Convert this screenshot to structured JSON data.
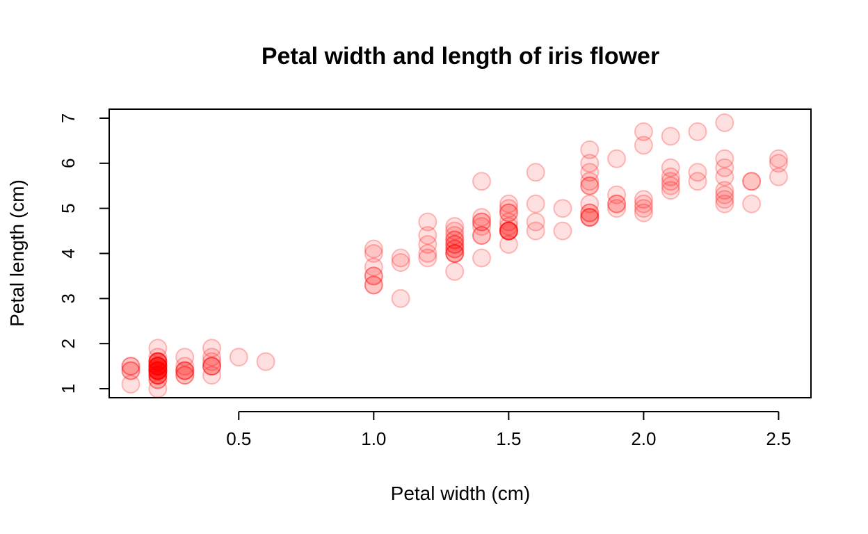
{
  "chart_data": {
    "type": "scatter",
    "title": "Petal width and length of iris flower",
    "xlabel": "Petal width (cm)",
    "ylabel": "Petal length (cm)",
    "xlim": [
      0.02,
      2.62
    ],
    "ylim": [
      0.8,
      7.2
    ],
    "xticks": [
      0.5,
      1.0,
      1.5,
      2.0,
      2.5
    ],
    "xtick_labels": [
      "0.5",
      "1.0",
      "1.5",
      "2.0",
      "2.5"
    ],
    "yticks": [
      1,
      2,
      3,
      4,
      5,
      6,
      7
    ],
    "ytick_labels": [
      "1",
      "2",
      "3",
      "4",
      "5",
      "6",
      "7"
    ],
    "grid": false,
    "legend": null,
    "point_color": "#ff0000",
    "point_fill_opacity": 0.12,
    "point_stroke_opacity": 0.25,
    "series": [
      {
        "points": [
          [
            0.2,
            1.4
          ],
          [
            0.2,
            1.4
          ],
          [
            0.2,
            1.3
          ],
          [
            0.2,
            1.5
          ],
          [
            0.2,
            1.4
          ],
          [
            0.4,
            1.7
          ],
          [
            0.3,
            1.4
          ],
          [
            0.2,
            1.5
          ],
          [
            0.2,
            1.4
          ],
          [
            0.1,
            1.5
          ],
          [
            0.2,
            1.5
          ],
          [
            0.2,
            1.6
          ],
          [
            0.1,
            1.4
          ],
          [
            0.1,
            1.1
          ],
          [
            0.2,
            1.2
          ],
          [
            0.4,
            1.5
          ],
          [
            0.4,
            1.3
          ],
          [
            0.3,
            1.4
          ],
          [
            0.3,
            1.7
          ],
          [
            0.3,
            1.5
          ],
          [
            0.2,
            1.7
          ],
          [
            0.4,
            1.5
          ],
          [
            0.2,
            1.0
          ],
          [
            0.5,
            1.7
          ],
          [
            0.2,
            1.9
          ],
          [
            0.2,
            1.6
          ],
          [
            0.4,
            1.6
          ],
          [
            0.2,
            1.5
          ],
          [
            0.2,
            1.4
          ],
          [
            0.2,
            1.6
          ],
          [
            0.2,
            1.6
          ],
          [
            0.4,
            1.5
          ],
          [
            0.1,
            1.5
          ],
          [
            0.2,
            1.4
          ],
          [
            0.2,
            1.5
          ],
          [
            0.2,
            1.2
          ],
          [
            0.2,
            1.3
          ],
          [
            0.1,
            1.4
          ],
          [
            0.2,
            1.3
          ],
          [
            0.2,
            1.5
          ],
          [
            0.3,
            1.3
          ],
          [
            0.3,
            1.3
          ],
          [
            0.2,
            1.3
          ],
          [
            0.6,
            1.6
          ],
          [
            0.4,
            1.9
          ],
          [
            0.3,
            1.4
          ],
          [
            0.2,
            1.6
          ],
          [
            0.2,
            1.4
          ],
          [
            0.2,
            1.5
          ],
          [
            0.2,
            1.4
          ],
          [
            1.4,
            4.7
          ],
          [
            1.5,
            4.5
          ],
          [
            1.5,
            4.9
          ],
          [
            1.3,
            4.0
          ],
          [
            1.5,
            4.6
          ],
          [
            1.3,
            4.5
          ],
          [
            1.6,
            4.7
          ],
          [
            1.0,
            3.3
          ],
          [
            1.3,
            4.6
          ],
          [
            1.4,
            3.9
          ],
          [
            1.0,
            3.5
          ],
          [
            1.5,
            4.2
          ],
          [
            1.0,
            4.0
          ],
          [
            1.4,
            4.7
          ],
          [
            1.3,
            3.6
          ],
          [
            1.4,
            4.4
          ],
          [
            1.5,
            4.5
          ],
          [
            1.0,
            4.1
          ],
          [
            1.5,
            4.5
          ],
          [
            1.1,
            3.9
          ],
          [
            1.8,
            4.8
          ],
          [
            1.3,
            4.0
          ],
          [
            1.5,
            4.9
          ],
          [
            1.2,
            4.7
          ],
          [
            1.3,
            4.3
          ],
          [
            1.4,
            4.4
          ],
          [
            1.4,
            4.8
          ],
          [
            1.7,
            5.0
          ],
          [
            1.5,
            4.5
          ],
          [
            1.0,
            3.5
          ],
          [
            1.1,
            3.8
          ],
          [
            1.0,
            3.7
          ],
          [
            1.2,
            3.9
          ],
          [
            1.6,
            5.1
          ],
          [
            1.5,
            4.5
          ],
          [
            1.6,
            4.5
          ],
          [
            1.5,
            4.7
          ],
          [
            1.3,
            4.4
          ],
          [
            1.3,
            4.1
          ],
          [
            1.3,
            4.0
          ],
          [
            1.2,
            4.4
          ],
          [
            1.4,
            4.6
          ],
          [
            1.2,
            4.0
          ],
          [
            1.0,
            3.3
          ],
          [
            1.3,
            4.2
          ],
          [
            1.2,
            4.2
          ],
          [
            1.3,
            4.2
          ],
          [
            1.3,
            4.3
          ],
          [
            1.1,
            3.0
          ],
          [
            1.3,
            4.1
          ],
          [
            2.5,
            6.0
          ],
          [
            1.9,
            5.1
          ],
          [
            2.1,
            5.9
          ],
          [
            1.8,
            5.6
          ],
          [
            2.2,
            5.8
          ],
          [
            2.1,
            6.6
          ],
          [
            1.7,
            4.5
          ],
          [
            1.8,
            6.3
          ],
          [
            1.8,
            5.8
          ],
          [
            2.5,
            6.1
          ],
          [
            2.0,
            5.1
          ],
          [
            1.9,
            5.3
          ],
          [
            2.1,
            5.5
          ],
          [
            2.0,
            5.0
          ],
          [
            2.4,
            5.1
          ],
          [
            2.3,
            5.3
          ],
          [
            1.8,
            5.5
          ],
          [
            2.2,
            6.7
          ],
          [
            2.3,
            6.9
          ],
          [
            1.5,
            5.0
          ],
          [
            2.3,
            5.7
          ],
          [
            2.0,
            4.9
          ],
          [
            2.0,
            6.7
          ],
          [
            1.8,
            4.9
          ],
          [
            2.1,
            5.7
          ],
          [
            1.8,
            6.0
          ],
          [
            1.8,
            4.8
          ],
          [
            1.8,
            4.9
          ],
          [
            2.1,
            5.6
          ],
          [
            1.6,
            5.8
          ],
          [
            1.9,
            6.1
          ],
          [
            2.0,
            6.4
          ],
          [
            2.2,
            5.6
          ],
          [
            1.5,
            5.1
          ],
          [
            1.4,
            5.6
          ],
          [
            2.3,
            6.1
          ],
          [
            2.4,
            5.6
          ],
          [
            1.8,
            5.5
          ],
          [
            1.8,
            4.8
          ],
          [
            2.1,
            5.4
          ],
          [
            2.4,
            5.6
          ],
          [
            2.3,
            5.1
          ],
          [
            1.9,
            5.1
          ],
          [
            2.3,
            5.9
          ],
          [
            2.5,
            5.7
          ],
          [
            2.3,
            5.2
          ],
          [
            1.9,
            5.0
          ],
          [
            2.0,
            5.2
          ],
          [
            2.3,
            5.4
          ],
          [
            1.8,
            5.1
          ]
        ]
      }
    ]
  }
}
